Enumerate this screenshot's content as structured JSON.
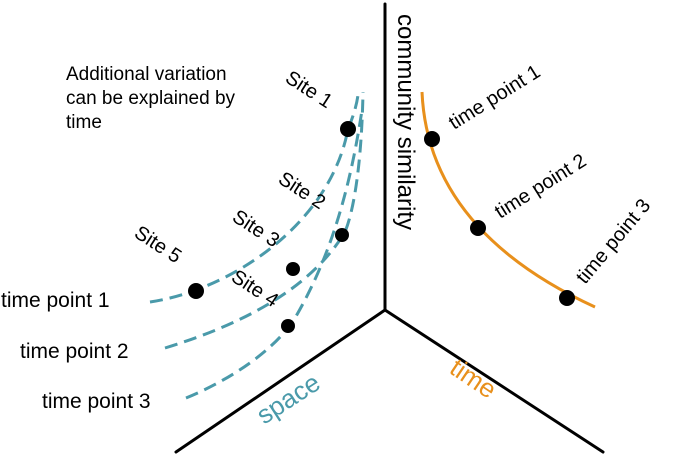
{
  "annotation": {
    "lines": [
      "Additional variation",
      "can be explained by",
      "time"
    ]
  },
  "axes": {
    "vertical_label": "community similarity",
    "space_label": "space",
    "time_label": "time"
  },
  "sites": {
    "site1": "Site 1",
    "site2": "Site 2",
    "site3": "Site 3",
    "site4": "Site 4",
    "site5": "Site 5"
  },
  "left_curves": {
    "tp1": "time point 1",
    "tp2": "time point 2",
    "tp3": "time point 3"
  },
  "right_curve": {
    "tp1": "time point 1",
    "tp2": "time point 2",
    "tp3": "time point 3"
  },
  "colors": {
    "axis": "#000000",
    "dashed_curves": "#4a9aaa",
    "space_text": "#4a9aaa",
    "time_curve": "#e8901c",
    "time_text": "#e8901c",
    "points": "#000000"
  }
}
